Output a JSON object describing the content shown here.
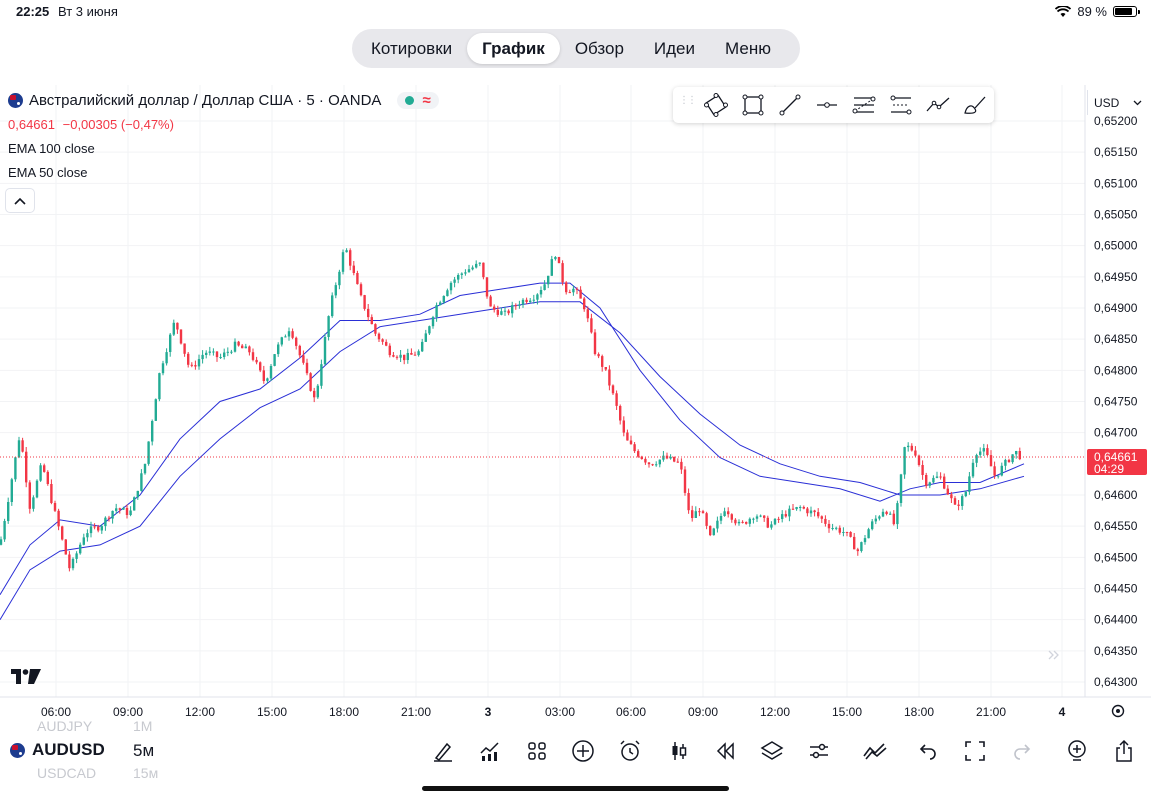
{
  "status": {
    "time": "22:25",
    "date": "Вт 3 июня",
    "battery": "89 %"
  },
  "tabs": [
    {
      "label": "Котировки",
      "active": false
    },
    {
      "label": "График",
      "active": true
    },
    {
      "label": "Обзор",
      "active": false
    },
    {
      "label": "Идеи",
      "active": false
    },
    {
      "label": "Меню",
      "active": false
    }
  ],
  "legend": {
    "title": "Австралийский доллар / Доллар США · 5 · OANDA",
    "last_price": "0,64661",
    "change": "−0,00305 (−0,47%)",
    "indicators": [
      "EMA 100 close",
      "EMA 50 close"
    ]
  },
  "drawing_tools": [
    "rotated-rectangle-icon",
    "rectangle-icon",
    "trend-line-icon",
    "horizontal-ray-icon",
    "fib-retracement-icon",
    "parallel-channel-icon",
    "path-icon",
    "brush-icon"
  ],
  "currency": "USD",
  "price_axis": {
    "labels": [
      "0,65200",
      "0,65150",
      "0,65100",
      "0,65050",
      "0,65000",
      "0,64950",
      "0,64900",
      "0,64850",
      "0,64800",
      "0,64750",
      "0,64700",
      "0,64600",
      "0,64550",
      "0,64500",
      "0,64450",
      "0,64400",
      "0,64350",
      "0,64300"
    ],
    "current_label": "0,64661",
    "countdown": "04:29"
  },
  "time_axis": [
    "06:00",
    "09:00",
    "12:00",
    "15:00",
    "18:00",
    "21:00",
    "3",
    "03:00",
    "06:00",
    "09:00",
    "12:00",
    "15:00",
    "18:00",
    "21:00",
    "4"
  ],
  "bottom": {
    "symbol": "AUDUSD",
    "interval": "5м",
    "bg_symbols": [
      "AUDJPY",
      "USDCAD"
    ],
    "bg_intervals": [
      "1M",
      "15м"
    ]
  },
  "colors": {
    "up": "#22ab94",
    "down": "#f23645",
    "ema100": "#2a2fd6",
    "ema50": "#2a2fd6",
    "accent": "#2962ff"
  },
  "chart_data": {
    "type": "candlestick",
    "title": "Австралийский доллар / Доллар США · 5 · OANDA",
    "ylim": [
      0.6429,
      0.6521
    ],
    "price_path": [
      [
        0,
        0.6452
      ],
      [
        20,
        0.647
      ],
      [
        30,
        0.6458
      ],
      [
        42,
        0.6465
      ],
      [
        55,
        0.6457
      ],
      [
        70,
        0.6448
      ],
      [
        85,
        0.6454
      ],
      [
        100,
        0.6455
      ],
      [
        115,
        0.6458
      ],
      [
        130,
        0.6457
      ],
      [
        145,
        0.6465
      ],
      [
        160,
        0.648
      ],
      [
        175,
        0.6488
      ],
      [
        190,
        0.648
      ],
      [
        205,
        0.6483
      ],
      [
        220,
        0.6482
      ],
      [
        235,
        0.6484
      ],
      [
        250,
        0.6483
      ],
      [
        265,
        0.6478
      ],
      [
        275,
        0.6483
      ],
      [
        290,
        0.6487
      ],
      [
        305,
        0.648
      ],
      [
        315,
        0.6475
      ],
      [
        330,
        0.649
      ],
      [
        345,
        0.65
      ],
      [
        360,
        0.6492
      ],
      [
        375,
        0.6486
      ],
      [
        390,
        0.6483
      ],
      [
        405,
        0.6482
      ],
      [
        420,
        0.6483
      ],
      [
        435,
        0.649
      ],
      [
        450,
        0.6494
      ],
      [
        465,
        0.6496
      ],
      [
        480,
        0.6497
      ],
      [
        490,
        0.649
      ],
      [
        505,
        0.6489
      ],
      [
        520,
        0.6491
      ],
      [
        535,
        0.6492
      ],
      [
        545,
        0.6494
      ],
      [
        555,
        0.6499
      ],
      [
        565,
        0.6493
      ],
      [
        575,
        0.6493
      ],
      [
        585,
        0.649
      ],
      [
        595,
        0.6483
      ],
      [
        605,
        0.648
      ],
      [
        615,
        0.6475
      ],
      [
        625,
        0.6469
      ],
      [
        635,
        0.6467
      ],
      [
        650,
        0.6465
      ],
      [
        665,
        0.6466
      ],
      [
        680,
        0.6465
      ],
      [
        690,
        0.6456
      ],
      [
        700,
        0.6458
      ],
      [
        710,
        0.6453
      ],
      [
        725,
        0.6458
      ],
      [
        740,
        0.6455
      ],
      [
        755,
        0.6457
      ],
      [
        770,
        0.6455
      ],
      [
        785,
        0.6457
      ],
      [
        800,
        0.6458
      ],
      [
        815,
        0.6457
      ],
      [
        830,
        0.6455
      ],
      [
        845,
        0.6454
      ],
      [
        858,
        0.6451
      ],
      [
        870,
        0.6455
      ],
      [
        885,
        0.6458
      ],
      [
        895,
        0.6455
      ],
      [
        905,
        0.6468
      ],
      [
        915,
        0.6467
      ],
      [
        925,
        0.6462
      ],
      [
        940,
        0.6463
      ],
      [
        955,
        0.6458
      ],
      [
        965,
        0.646
      ],
      [
        975,
        0.6467
      ],
      [
        985,
        0.6467
      ],
      [
        995,
        0.6463
      ],
      [
        1005,
        0.6465
      ],
      [
        1015,
        0.6467
      ],
      [
        1022,
        0.6466
      ]
    ],
    "ema100_path": [
      [
        0,
        0.644
      ],
      [
        30,
        0.6448
      ],
      [
        60,
        0.6451
      ],
      [
        100,
        0.6452
      ],
      [
        140,
        0.6455
      ],
      [
        180,
        0.6463
      ],
      [
        220,
        0.6469
      ],
      [
        260,
        0.6474
      ],
      [
        300,
        0.6477
      ],
      [
        340,
        0.6483
      ],
      [
        380,
        0.6487
      ],
      [
        420,
        0.6488
      ],
      [
        460,
        0.6489
      ],
      [
        500,
        0.649
      ],
      [
        540,
        0.6491
      ],
      [
        580,
        0.6491
      ],
      [
        620,
        0.6486
      ],
      [
        660,
        0.6479
      ],
      [
        700,
        0.6473
      ],
      [
        740,
        0.6468
      ],
      [
        780,
        0.6465
      ],
      [
        820,
        0.6463
      ],
      [
        860,
        0.6462
      ],
      [
        900,
        0.646
      ],
      [
        940,
        0.646
      ],
      [
        980,
        0.6461
      ],
      [
        1024,
        0.6463
      ]
    ],
    "ema50_path": [
      [
        0,
        0.6444
      ],
      [
        30,
        0.6452
      ],
      [
        60,
        0.6456
      ],
      [
        100,
        0.6455
      ],
      [
        140,
        0.646
      ],
      [
        180,
        0.6469
      ],
      [
        220,
        0.6475
      ],
      [
        260,
        0.6477
      ],
      [
        300,
        0.6482
      ],
      [
        340,
        0.6488
      ],
      [
        380,
        0.6488
      ],
      [
        420,
        0.6489
      ],
      [
        460,
        0.6492
      ],
      [
        500,
        0.6493
      ],
      [
        540,
        0.6494
      ],
      [
        570,
        0.6494
      ],
      [
        600,
        0.649
      ],
      [
        640,
        0.648
      ],
      [
        680,
        0.6472
      ],
      [
        720,
        0.6466
      ],
      [
        760,
        0.6463
      ],
      [
        800,
        0.6462
      ],
      [
        840,
        0.6461
      ],
      [
        880,
        0.6459
      ],
      [
        910,
        0.6461
      ],
      [
        940,
        0.6462
      ],
      [
        980,
        0.6462
      ],
      [
        1024,
        0.6465
      ]
    ]
  }
}
